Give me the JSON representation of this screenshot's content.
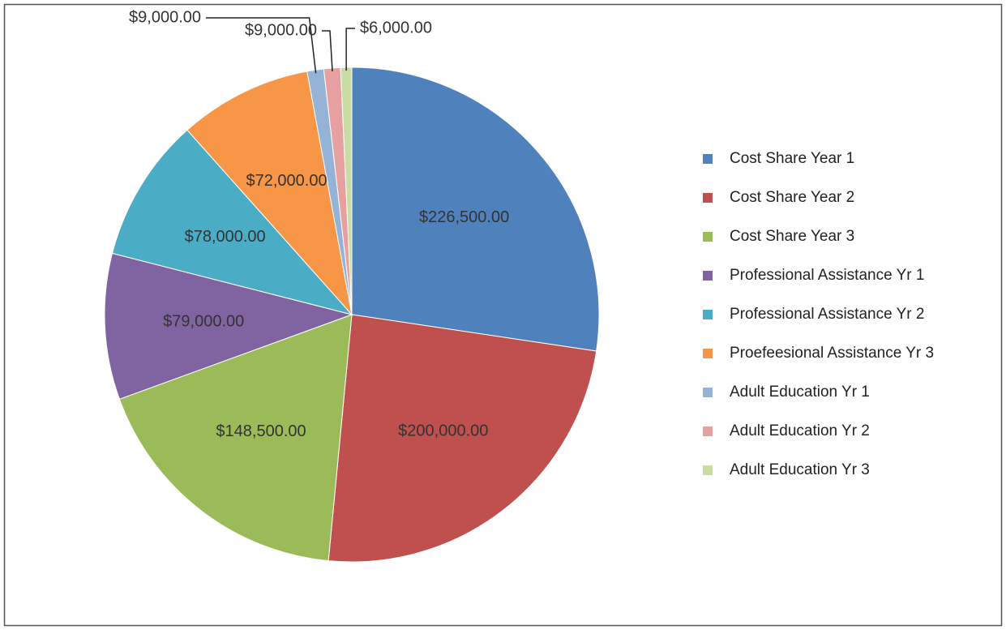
{
  "chart_data": {
    "type": "pie",
    "categories": [
      "Cost Share Year 1",
      "Cost Share Year 2",
      "Cost Share Year 3",
      "Professional Assistance Yr 1",
      "Professional Assistance Yr 2",
      "Proefeesional Assistance Yr 3",
      "Adult Education Yr 1",
      "Adult Education Yr 2",
      "Adult Education Yr 3"
    ],
    "values": [
      226500,
      200000,
      148500,
      79000,
      78000,
      72000,
      9000,
      9000,
      6000
    ],
    "value_labels": [
      "$226,500.00",
      "$200,000.00",
      "$148,500.00",
      "$79,000.00",
      "$78,000.00",
      "$72,000.00",
      "$9,000.00",
      "$9,000.00",
      "$6,000.00"
    ],
    "colors": [
      "#4f81bd",
      "#c0504d",
      "#9bbb59",
      "#8064a2",
      "#4bacc6",
      "#f79646",
      "#95b3d7",
      "#e6a0a0",
      "#c9dca4"
    ],
    "legend": "right"
  }
}
